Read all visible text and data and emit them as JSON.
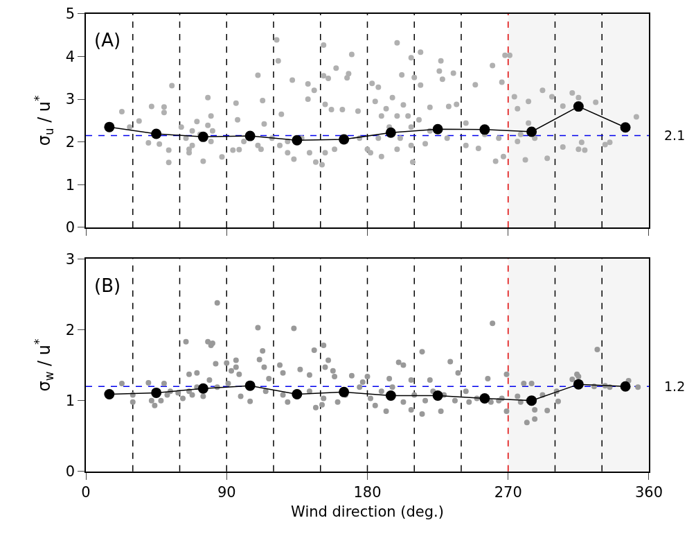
{
  "chart_data": [
    {
      "type": "scatter",
      "ylabel": "σ$_{u}$ / u$^{*}$",
      "annotations": [
        "(A)"
      ],
      "xlim": [
        0,
        360
      ],
      "xticks": [
        0,
        90,
        180,
        270,
        360
      ],
      "ylim": [
        0,
        5
      ],
      "yticks": [
        0,
        1,
        2,
        3,
        4,
        5
      ],
      "tick_labels": "y",
      "grid": false,
      "marker": "circle",
      "bands": [
        {
          "axis": "x",
          "from": 270,
          "to": 360,
          "color": "#f5f5f5"
        }
      ],
      "ref_lines": [
        {
          "axis": "x",
          "value": 30,
          "color": "#000000",
          "line_style": "dashed"
        },
        {
          "axis": "x",
          "value": 60,
          "color": "#000000",
          "line_style": "dashed"
        },
        {
          "axis": "x",
          "value": 90,
          "color": "#000000",
          "line_style": "dashed"
        },
        {
          "axis": "x",
          "value": 120,
          "color": "#000000",
          "line_style": "dashed"
        },
        {
          "axis": "x",
          "value": 150,
          "color": "#000000",
          "line_style": "dashed"
        },
        {
          "axis": "x",
          "value": 180,
          "color": "#000000",
          "line_style": "dashed"
        },
        {
          "axis": "x",
          "value": 210,
          "color": "#000000",
          "line_style": "dashed"
        },
        {
          "axis": "x",
          "value": 240,
          "color": "#000000",
          "line_style": "dashed"
        },
        {
          "axis": "x",
          "value": 270,
          "color": "#e00000",
          "line_style": "dashed"
        },
        {
          "axis": "x",
          "value": 300,
          "color": "#000000",
          "line_style": "dashed"
        },
        {
          "axis": "x",
          "value": 330,
          "color": "#000000",
          "line_style": "dashed"
        },
        {
          "axis": "y",
          "value": 2.15,
          "label": "2.1",
          "color": "#0000ee",
          "line_style": "dashed"
        }
      ],
      "series": [
        {
          "type": "scatter",
          "color": "#b0b0b0",
          "x": [
            23,
            28,
            34,
            42,
            50,
            50,
            55,
            53,
            40,
            47,
            53,
            78,
            68,
            66,
            75,
            80,
            71,
            78,
            81,
            87,
            96,
            94,
            98,
            97,
            110,
            113,
            110,
            114,
            122,
            123,
            125,
            132,
            129,
            133,
            142,
            142,
            146,
            147,
            151,
            152,
            152,
            155,
            153,
            157,
            164,
            160,
            167,
            170,
            168,
            174,
            153,
            159,
            183,
            187,
            199,
            202,
            208,
            210,
            214,
            214,
            209,
            185,
            192,
            196,
            203,
            182,
            189,
            199,
            208,
            217,
            220,
            227,
            228,
            226,
            235,
            232,
            237,
            249,
            243,
            251,
            260,
            266,
            268,
            271,
            262,
            267,
            274,
            276,
            283,
            281,
            292,
            298,
            295,
            305,
            305,
            311,
            315,
            326,
            317,
            319,
            315,
            332,
            335,
            352,
            287,
            276,
            64,
            68,
            61,
            73,
            80,
            66,
            129,
            138,
            119,
            124,
            175,
            180,
            189,
            194,
            201,
            208,
            213,
            220,
            231,
            243,
            255,
            264,
            278,
            283,
            187,
            199,
            206,
            101,
            112,
            143
          ],
          "values": [
            2.71,
            2.35,
            2.49,
            2.83,
            2.82,
            2.69,
            3.32,
            1.52,
            1.98,
            1.95,
            1.81,
            3.04,
            1.92,
            1.75,
            1.55,
            2.61,
            2.48,
            2.39,
            2.26,
            1.65,
            2.91,
            1.81,
            1.82,
            2.52,
            3.56,
            2.97,
            1.92,
            2.42,
            4.39,
            3.9,
            2.65,
            3.45,
            1.75,
            1.6,
            3.36,
            3.0,
            3.21,
            1.53,
            1.47,
            4.27,
            3.55,
            3.49,
            2.88,
            2.76,
            2.76,
            3.73,
            3.5,
            4.05,
            3.6,
            2.72,
            1.75,
            1.83,
            3.37,
            3.28,
            4.32,
            3.57,
            3.97,
            3.51,
            4.1,
            3.33,
            1.53,
            2.95,
            2.78,
            3.04,
            2.87,
            1.75,
            1.66,
            1.83,
            1.92,
            1.96,
            2.81,
            3.9,
            3.47,
            3.66,
            3.61,
            2.83,
            2.88,
            3.34,
            1.92,
            1.85,
            3.79,
            3.4,
            4.03,
            4.03,
            1.55,
            1.66,
            3.06,
            2.78,
            2.95,
            1.58,
            3.21,
            3.06,
            1.62,
            2.84,
            1.88,
            3.15,
            3.04,
            2.93,
            1.99,
            1.81,
            1.83,
            1.94,
            1.99,
            2.59,
            2.09,
            2.01,
            2.09,
            2.26,
            2.35,
            2.18,
            2.01,
            1.83,
            2.01,
            2.09,
            2.09,
            1.92,
            2.09,
            1.83,
            2.61,
            2.35,
            2.09,
            2.35,
            2.52,
            2.26,
            2.09,
            2.44,
            2.18,
            2.09,
            2.18,
            2.44,
            2.09,
            2.61,
            2.61,
            2.01,
            1.83,
            1.75
          ]
        },
        {
          "type": "line",
          "color": "#000000",
          "line_style": "solid",
          "x": [
            15,
            45,
            75,
            105,
            135,
            165,
            195,
            225,
            255,
            285,
            315,
            345
          ],
          "values": [
            2.35,
            2.19,
            2.12,
            2.14,
            2.04,
            2.06,
            2.22,
            2.3,
            2.29,
            2.24,
            2.83,
            2.34
          ]
        }
      ]
    },
    {
      "type": "scatter",
      "xlabel": "Wind direction (deg.)",
      "ylabel": "σ$_{w}$ / u$^{*}$",
      "annotations": [
        "(B)"
      ],
      "xlim": [
        0,
        360
      ],
      "xticks": [
        0,
        90,
        180,
        270,
        360
      ],
      "ylim": [
        0,
        3
      ],
      "yticks": [
        0,
        1,
        2,
        3
      ],
      "grid": false,
      "marker": "circle",
      "bands": [
        {
          "axis": "x",
          "from": 270,
          "to": 360,
          "color": "#f5f5f5"
        }
      ],
      "ref_lines": [
        {
          "axis": "x",
          "value": 30,
          "color": "#000000",
          "line_style": "dashed"
        },
        {
          "axis": "x",
          "value": 60,
          "color": "#000000",
          "line_style": "dashed"
        },
        {
          "axis": "x",
          "value": 90,
          "color": "#000000",
          "line_style": "dashed"
        },
        {
          "axis": "x",
          "value": 120,
          "color": "#000000",
          "line_style": "dashed"
        },
        {
          "axis": "x",
          "value": 150,
          "color": "#000000",
          "line_style": "dashed"
        },
        {
          "axis": "x",
          "value": 180,
          "color": "#000000",
          "line_style": "dashed"
        },
        {
          "axis": "x",
          "value": 210,
          "color": "#000000",
          "line_style": "dashed"
        },
        {
          "axis": "x",
          "value": 240,
          "color": "#000000",
          "line_style": "dashed"
        },
        {
          "axis": "x",
          "value": 270,
          "color": "#e00000",
          "line_style": "dashed"
        },
        {
          "axis": "x",
          "value": 300,
          "color": "#000000",
          "line_style": "dashed"
        },
        {
          "axis": "x",
          "value": 330,
          "color": "#000000",
          "line_style": "dashed"
        },
        {
          "axis": "y",
          "value": 1.2,
          "label": "1.2",
          "color": "#0000ee",
          "line_style": "dashed"
        }
      ],
      "series": [
        {
          "type": "scatter",
          "color": "#999999",
          "x": [
            23,
            30,
            30,
            40,
            42,
            44,
            48,
            50,
            54,
            64,
            66,
            62,
            68,
            71,
            78,
            80,
            81,
            83,
            84,
            79,
            75,
            90,
            93,
            96,
            96,
            98,
            99,
            105,
            110,
            113,
            111,
            114,
            117,
            124,
            126,
            133,
            129,
            137,
            143,
            146,
            152,
            153,
            155,
            158,
            152,
            147,
            151,
            159,
            170,
            177,
            185,
            192,
            200,
            203,
            215,
            215,
            208,
            220,
            227,
            233,
            238,
            245,
            257,
            260,
            269,
            269,
            264,
            280,
            285,
            282,
            287,
            287,
            295,
            292,
            302,
            301,
            311,
            314,
            315,
            327,
            325,
            335,
            347,
            353,
            332,
            52,
            59,
            66,
            71,
            84,
            91,
            115,
            126,
            143,
            161,
            166,
            175,
            182,
            189,
            196,
            203,
            210,
            217,
            222,
            229,
            236,
            243,
            250,
            259,
            266,
            276,
            278,
            283,
            194,
            208,
            180
          ],
          "values": [
            1.24,
            1.08,
            0.98,
            1.25,
            1.0,
            0.93,
            1.0,
            1.24,
            1.13,
            1.83,
            1.37,
            1.03,
            1.08,
            1.39,
            1.83,
            1.78,
            1.81,
            1.52,
            2.38,
            1.29,
            1.06,
            1.53,
            1.42,
            1.57,
            1.47,
            1.37,
            1.06,
            0.99,
            2.03,
            1.7,
            1.58,
            1.47,
            1.31,
            1.5,
            1.39,
            2.02,
            0.98,
            1.44,
            1.36,
            1.71,
            1.78,
            1.47,
            1.57,
            1.42,
            1.03,
            0.9,
            0.94,
            1.34,
            1.35,
            1.26,
            0.93,
            0.85,
            1.54,
            1.5,
            1.69,
            0.81,
            0.87,
            1.29,
            0.85,
            1.55,
            1.39,
            0.98,
            1.31,
            2.09,
            1.37,
            0.85,
            1.0,
            1.24,
            1.24,
            0.69,
            0.74,
            0.87,
            0.86,
            1.08,
            0.99,
            1.13,
            1.3,
            1.37,
            1.34,
            1.72,
            1.2,
            1.19,
            1.28,
            1.19,
            1.21,
            1.08,
            1.11,
            1.13,
            1.19,
            1.19,
            1.24,
            1.13,
            1.08,
            1.13,
            0.98,
            1.08,
            1.19,
            1.03,
            1.13,
            1.19,
            0.98,
            1.08,
            1.0,
            1.13,
            1.08,
            1.0,
            1.13,
            1.03,
            0.98,
            1.03,
            1.06,
            0.98,
            1.0,
            1.31,
            1.29,
            1.34
          ]
        },
        {
          "type": "line",
          "color": "#000000",
          "line_style": "solid",
          "x": [
            15,
            45,
            75,
            105,
            135,
            165,
            195,
            225,
            255,
            285,
            315,
            345
          ],
          "values": [
            1.09,
            1.11,
            1.17,
            1.21,
            1.09,
            1.12,
            1.07,
            1.07,
            1.03,
            1.0,
            1.23,
            1.2
          ]
        }
      ]
    }
  ]
}
